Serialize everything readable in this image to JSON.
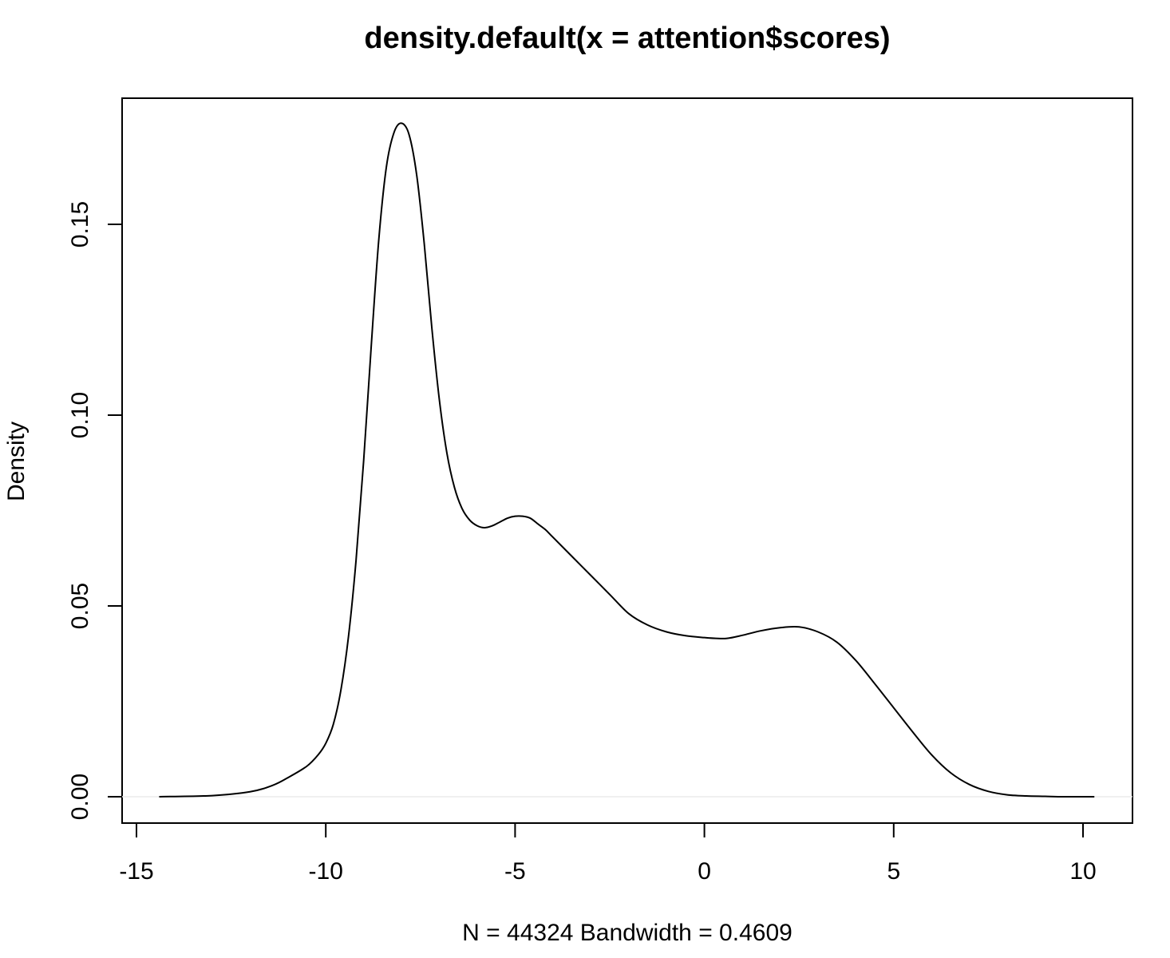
{
  "chart_data": {
    "type": "line",
    "title": "density.default(x = attention$scores)",
    "xlabel": "N = 44324   Bandwidth = 0.4609",
    "ylabel": "Density",
    "xlim": [
      -15,
      10
    ],
    "ylim": [
      0,
      0.17
    ],
    "x_ticks": [
      -15,
      -10,
      -5,
      0,
      5,
      10
    ],
    "x_tick_labels": [
      "-15",
      "-10",
      "-5",
      "0",
      "5",
      "10"
    ],
    "y_ticks": [
      0.0,
      0.05,
      0.1,
      0.15
    ],
    "y_tick_labels": [
      "0.00",
      "0.05",
      "0.10",
      "0.15"
    ],
    "grid": false,
    "series": [
      {
        "x": [
          -14.4,
          -13.0,
          -12.0,
          -11.4,
          -11.0,
          -10.5,
          -10.2,
          -10.0,
          -9.8,
          -9.6,
          -9.4,
          -9.2,
          -9.0,
          -8.8,
          -8.6,
          -8.4,
          -8.2,
          -8.0,
          -7.8,
          -7.6,
          -7.4,
          -7.2,
          -7.0,
          -6.8,
          -6.6,
          -6.4,
          -6.2,
          -6.0,
          -5.8,
          -5.6,
          -5.4,
          -5.2,
          -5.0,
          -4.8,
          -4.6,
          -4.4,
          -4.2,
          -4.0,
          -3.5,
          -3.0,
          -2.5,
          -2.0,
          -1.5,
          -1.0,
          -0.5,
          0.0,
          0.3,
          0.6,
          1.0,
          1.5,
          2.0,
          2.5,
          3.0,
          3.5,
          4.0,
          4.5,
          5.0,
          5.5,
          6.0,
          6.5,
          7.0,
          7.5,
          8.0,
          8.5,
          9.0,
          9.5,
          10.3
        ],
        "y": [
          0.0,
          0.0003,
          0.0013,
          0.003,
          0.005,
          0.008,
          0.011,
          0.014,
          0.019,
          0.028,
          0.042,
          0.062,
          0.088,
          0.118,
          0.146,
          0.165,
          0.174,
          0.1765,
          0.1735,
          0.163,
          0.145,
          0.123,
          0.104,
          0.09,
          0.081,
          0.0755,
          0.0725,
          0.071,
          0.0705,
          0.071,
          0.072,
          0.073,
          0.0735,
          0.0735,
          0.073,
          0.0715,
          0.07,
          0.068,
          0.063,
          0.058,
          0.053,
          0.048,
          0.045,
          0.0432,
          0.0422,
          0.0417,
          0.0415,
          0.0415,
          0.0423,
          0.0435,
          0.0443,
          0.0445,
          0.0432,
          0.0405,
          0.0357,
          0.0296,
          0.0233,
          0.017,
          0.011,
          0.0063,
          0.0032,
          0.0014,
          0.0005,
          0.0002,
          0.0001,
          0.0,
          0.0
        ]
      }
    ]
  }
}
